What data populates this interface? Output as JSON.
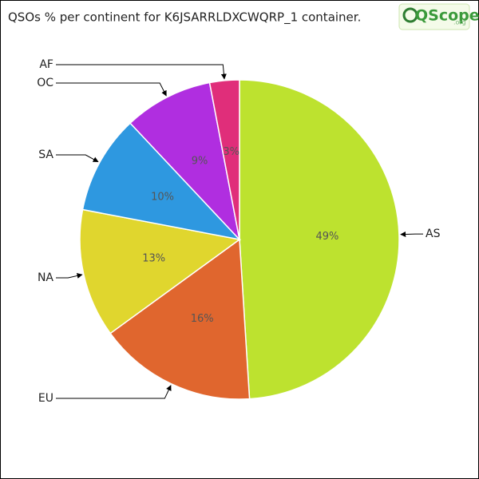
{
  "chart_data": {
    "type": "pie",
    "title": "QSOs % per continent for K6JSARRLDXCWQRP_1 container.",
    "logo": {
      "name": "QScope",
      "suffix": ".org"
    },
    "categories": [
      "AS",
      "EU",
      "NA",
      "SA",
      "OC",
      "AF"
    ],
    "values": [
      49,
      16,
      13,
      10,
      9,
      3
    ],
    "value_labels": [
      "49%",
      "16%",
      "13%",
      "10%",
      "9%",
      "3%"
    ],
    "colors": [
      "#bde22f",
      "#e0662e",
      "#e0d62e",
      "#2e98e0",
      "#b02ee0",
      "#e02e7a"
    ]
  }
}
